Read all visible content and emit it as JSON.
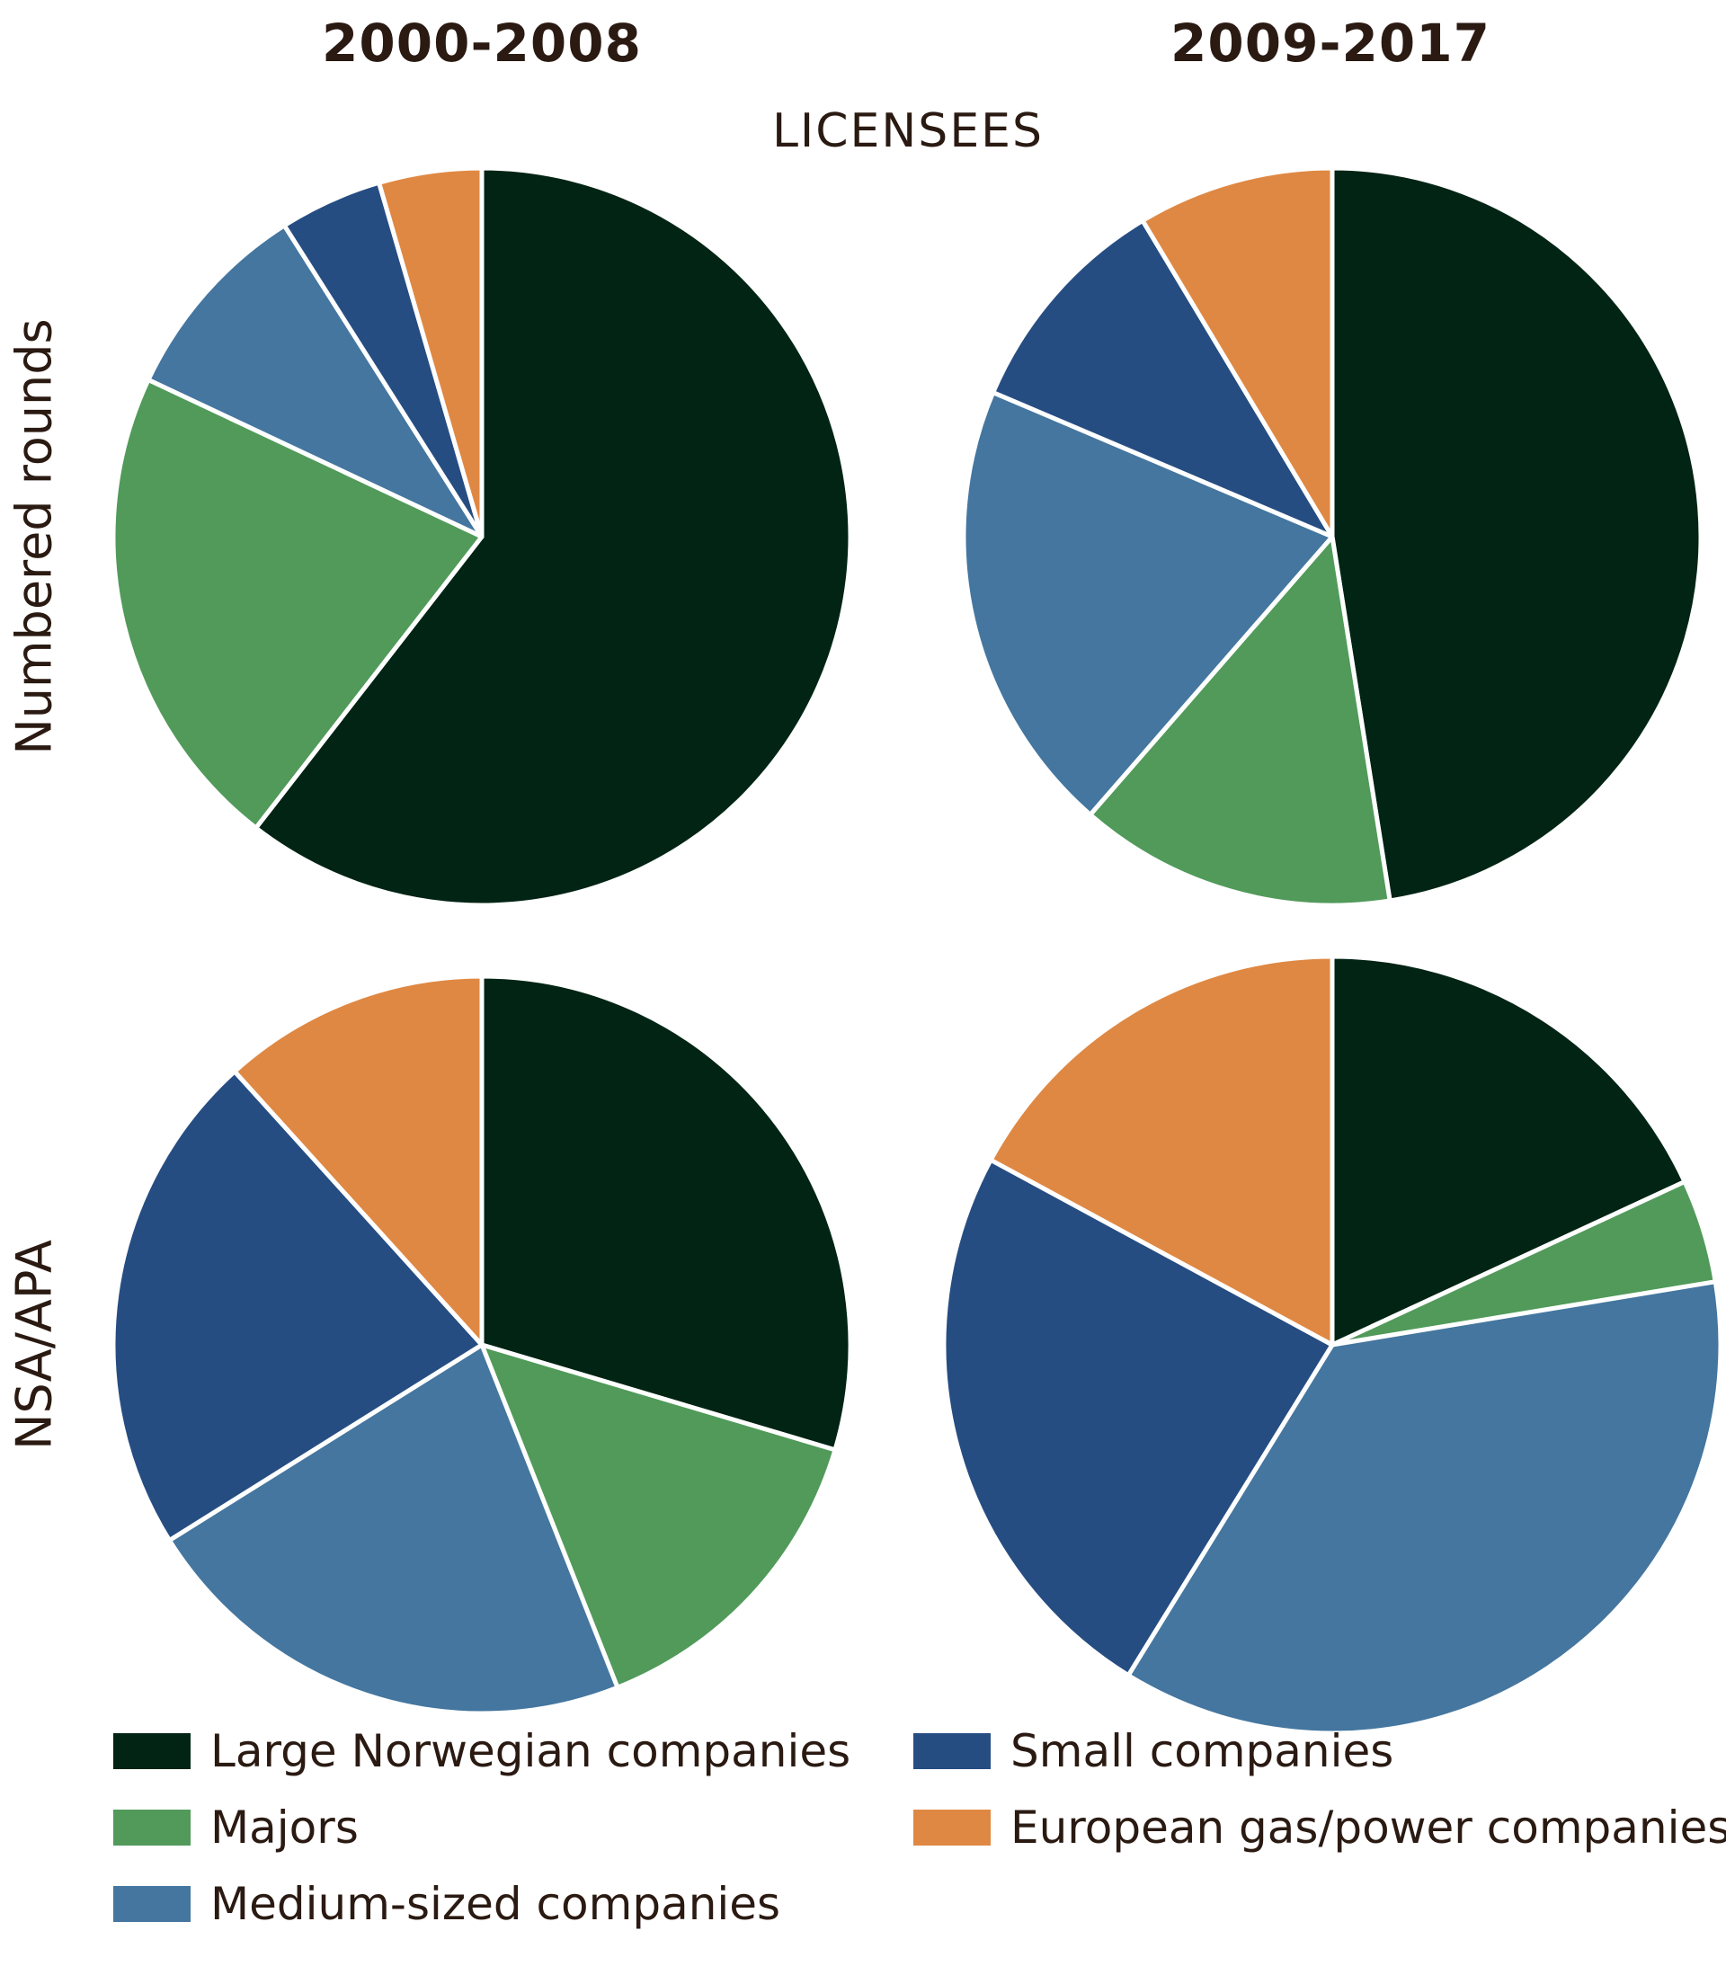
{
  "column_titles": [
    "2000-2008",
    "2009-2017"
  ],
  "center_label": "LICENSEES",
  "row_labels": [
    "Numbered rounds",
    "NSA/APA"
  ],
  "colors": {
    "Large Norwegian companies": "#012414",
    "Majors": "#519a5a",
    "Medium-sized companies": "#44769f",
    "Small companies": "#264d82",
    "European gas/power companies": "#df8843"
  },
  "legend": [
    "Large Norwegian companies",
    "Majors",
    "Medium-sized companies",
    "Small companies",
    "European gas/power companies"
  ],
  "chart_data": [
    {
      "type": "pie",
      "row": "Numbered rounds",
      "column": "2000-2008",
      "categories": [
        "Large Norwegian companies",
        "Majors",
        "Medium-sized companies",
        "Small companies",
        "European gas/power companies"
      ],
      "values": [
        60.5,
        21.5,
        9.0,
        4.5,
        4.5
      ]
    },
    {
      "type": "pie",
      "row": "Numbered rounds",
      "column": "2009-2017",
      "categories": [
        "Large Norwegian companies",
        "Majors",
        "Medium-sized companies",
        "Small companies",
        "European gas/power companies"
      ],
      "values": [
        47.5,
        13.9,
        20.0,
        10.0,
        8.6
      ]
    },
    {
      "type": "pie",
      "row": "NSA/APA",
      "column": "2000-2008",
      "categories": [
        "Large Norwegian companies",
        "Majors",
        "Medium-sized companies",
        "Small companies",
        "European gas/power companies"
      ],
      "values": [
        29.6,
        14.4,
        22.1,
        22.2,
        11.7
      ]
    },
    {
      "type": "pie",
      "row": "NSA/APA",
      "column": "2009-2017",
      "categories": [
        "Large Norwegian companies",
        "Majors",
        "Medium-sized companies",
        "Small companies",
        "European gas/power companies"
      ],
      "values": [
        18.1,
        4.3,
        36.4,
        24.1,
        17.1
      ]
    }
  ]
}
